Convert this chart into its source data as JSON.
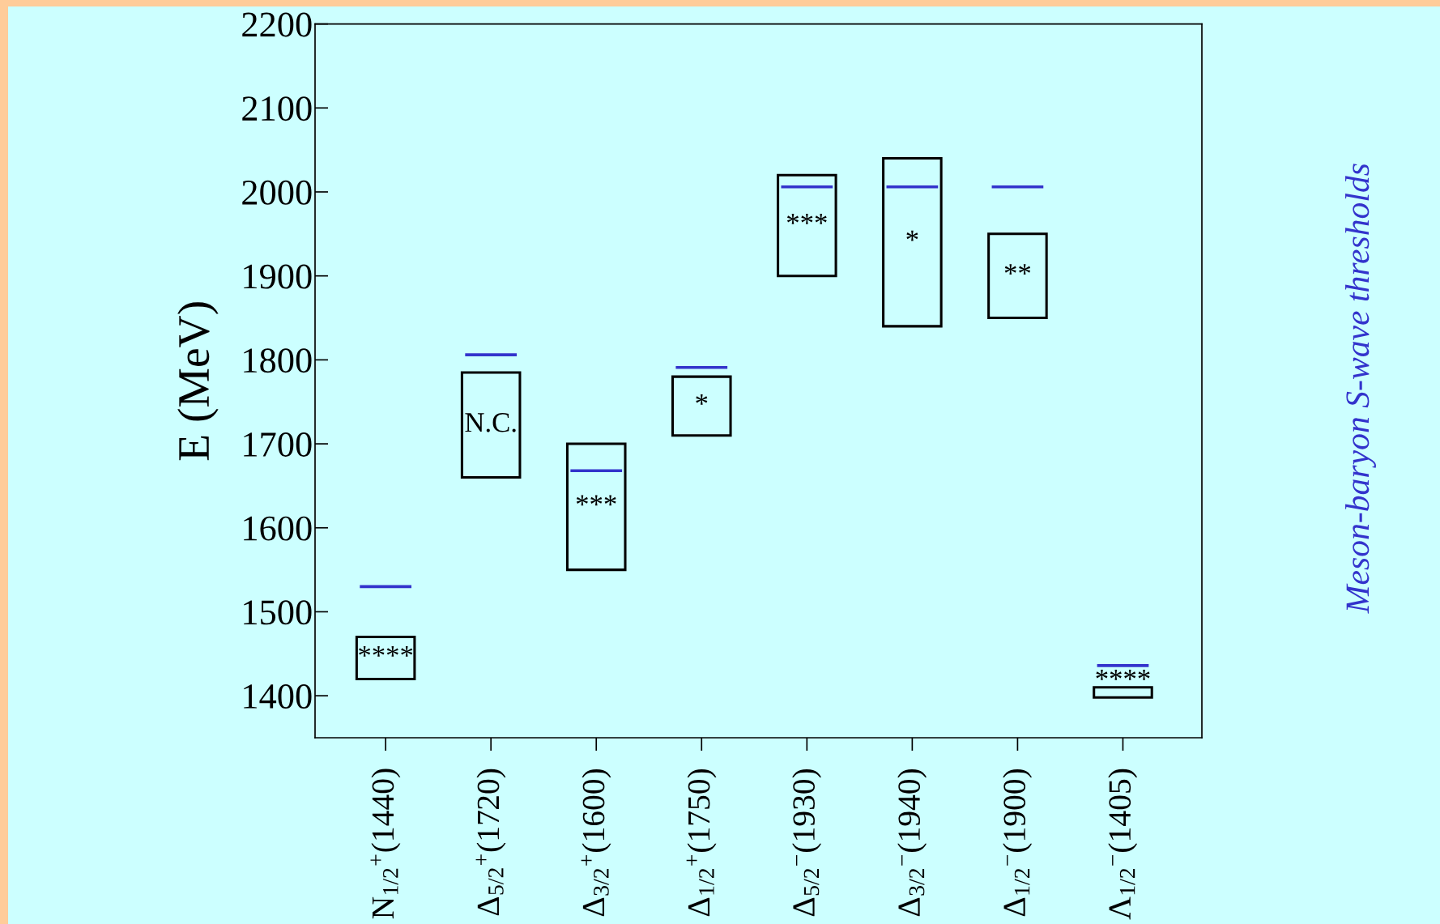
{
  "chart_data": {
    "type": "bar",
    "categories": [
      "N$_{1/2}$$^{+}$(1440)",
      "Δ$_{5/2}$$^{+}$(1720)",
      "Δ$_{3/2}$$^{+}$(1600)",
      "Δ$_{1/2}$$^{+}$(1750)",
      "Δ$_{5/2}$$^{−}$(1930)",
      "Δ$_{3/2}$$^{−}$(1940)",
      "Δ$_{1/2}$$^{−}$(1900)",
      "Λ$_{1/2}$$^{−}$(1405)"
    ],
    "ylabel": "E (MeV)",
    "ylim": [
      1350,
      2200
    ],
    "yticks": [
      1400,
      1500,
      1600,
      1700,
      1800,
      1900,
      2000,
      2100,
      2200
    ],
    "series": [
      {
        "color": "#000000",
        "base": [
          1420,
          1660,
          1550,
          1710,
          1900,
          1840,
          1850,
          1398
        ],
        "values": [
          50,
          125,
          150,
          70,
          120,
          200,
          100,
          12
        ],
        "value_labels": [
          "****",
          "N.C.",
          "***",
          "*",
          "***",
          "*",
          "**",
          "****"
        ]
      },
      {
        "name": "Meson-baryon S-wave thresholds",
        "color": "#3333cc",
        "base": [
          1530,
          1806,
          1668,
          1791,
          2006,
          2006,
          2006,
          1436
        ],
        "values": [
          0,
          0,
          0,
          0,
          0,
          0,
          0,
          0
        ]
      }
    ]
  }
}
